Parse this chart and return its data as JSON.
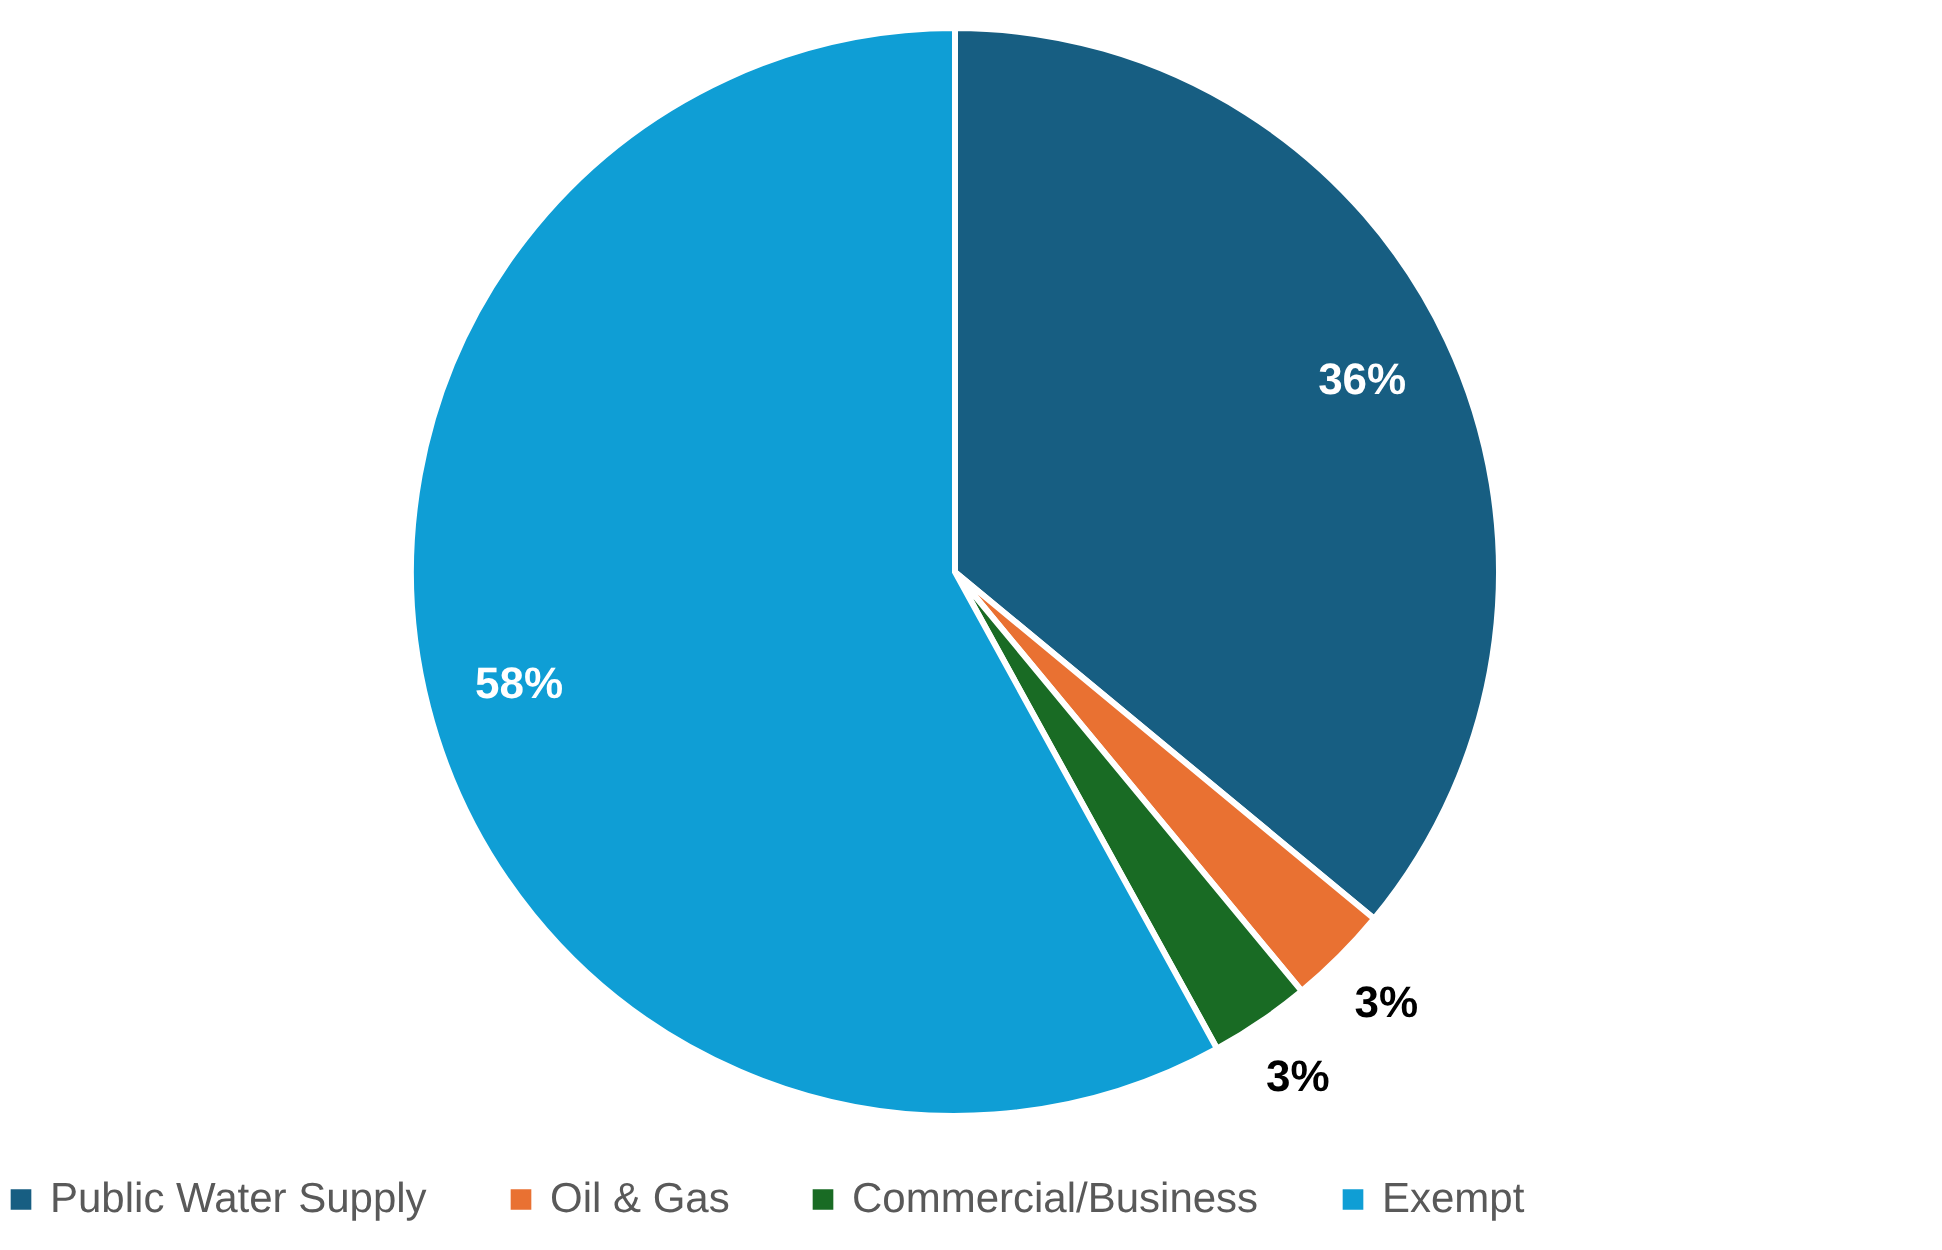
{
  "chart_data": {
    "type": "pie",
    "categories": [
      "Public Water Supply",
      "Oil & Gas",
      "Commercial/Business",
      "Exempt"
    ],
    "values": [
      36,
      3,
      3,
      58
    ],
    "colors": [
      "#175e82",
      "#e97132",
      "#196b24",
      "#0f9ed5"
    ],
    "value_labels": [
      "36%",
      "3%",
      "3%",
      "58%"
    ],
    "legend": "bottom"
  }
}
